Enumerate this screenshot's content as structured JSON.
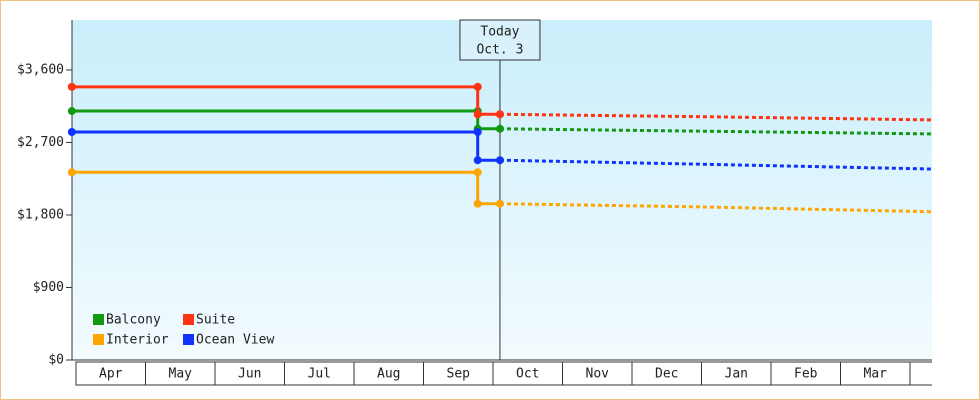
{
  "chart_data": {
    "type": "step-line",
    "categories": [
      "Apr",
      "May",
      "Jun",
      "Jul",
      "Aug",
      "Sep",
      "Oct",
      "Nov",
      "Dec",
      "Jan",
      "Feb",
      "Mar"
    ],
    "xlim": [
      -0.06,
      12.32
    ],
    "ylim": [
      0,
      4220
    ],
    "yticks": [
      {
        "value": 0,
        "label": "$0"
      },
      {
        "value": 900,
        "label": "$900"
      },
      {
        "value": 1800,
        "label": "$1,800"
      },
      {
        "value": 2700,
        "label": "$2,700"
      },
      {
        "value": 3600,
        "label": "$3,600"
      }
    ],
    "today": {
      "x": 6.1,
      "label": [
        "Today",
        "Oct. 3"
      ]
    },
    "legend": "bottom-left",
    "series": [
      {
        "name": "Balcony",
        "color": "#119911",
        "x": [
          -0.06,
          5.78,
          5.78,
          6.1
        ],
        "values": [
          3090,
          3090,
          2870,
          2870
        ],
        "forecast": {
          "x": [
            6.1,
            9,
            12.32
          ],
          "values": [
            2870,
            2840,
            2806
          ]
        }
      },
      {
        "name": "Suite",
        "color": "#ff3311",
        "x": [
          -0.06,
          5.78,
          5.78,
          6.1
        ],
        "values": [
          3390,
          3390,
          3050,
          3050
        ],
        "forecast": {
          "x": [
            6.1,
            9,
            12.32
          ],
          "values": [
            3050,
            3020,
            2980
          ]
        }
      },
      {
        "name": "Interior",
        "color": "#ffa500",
        "x": [
          -0.06,
          5.78,
          5.78,
          6.1
        ],
        "values": [
          2330,
          2330,
          1940,
          1940
        ],
        "forecast": {
          "x": [
            6.1,
            9,
            12.32
          ],
          "values": [
            1940,
            1900,
            1840
          ]
        }
      },
      {
        "name": "Ocean View",
        "color": "#1133ff",
        "x": [
          -0.06,
          5.78,
          5.78,
          6.1
        ],
        "values": [
          2830,
          2830,
          2480,
          2480
        ],
        "forecast": {
          "x": [
            6.1,
            9,
            12.32
          ],
          "values": [
            2480,
            2430,
            2370
          ]
        }
      }
    ]
  }
}
